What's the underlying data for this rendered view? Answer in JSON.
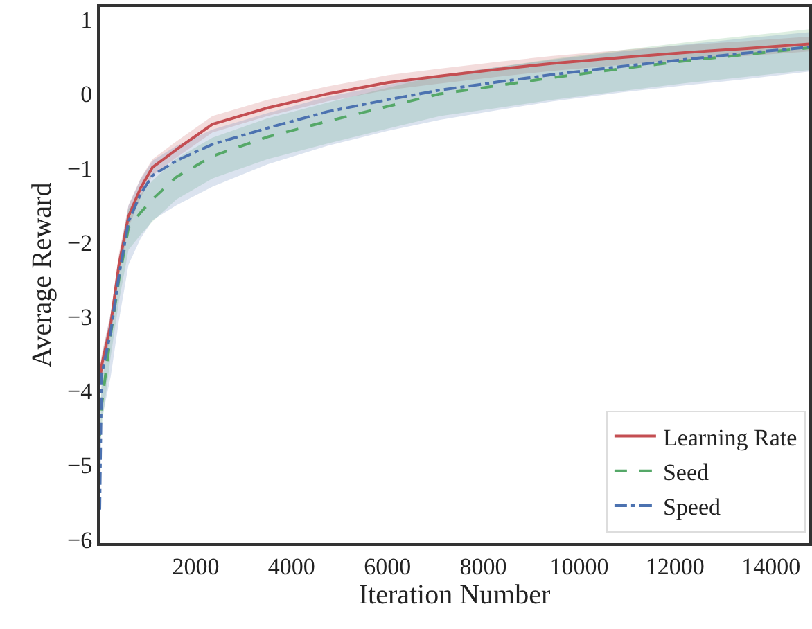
{
  "chart_data": {
    "type": "line",
    "xlabel": "Iteration Number",
    "ylabel": "Average Reward",
    "x": [
      0,
      38,
      230,
      400,
      600,
      850,
      1100,
      1600,
      2350,
      3500,
      4750,
      6000,
      7100,
      8300,
      9450,
      10900,
      12300,
      13500,
      14800
    ],
    "series": [
      {
        "name": "Learning Rate",
        "color": "#c44e52",
        "line_style": "solid",
        "values": [
          -3.9,
          -3.66,
          -3.1,
          -2.3,
          -1.65,
          -1.27,
          -0.99,
          -0.75,
          -0.41,
          -0.19,
          0.0,
          0.15,
          0.24,
          0.33,
          0.41,
          0.49,
          0.56,
          0.61,
          0.67
        ],
        "lower": [
          -4.1,
          -3.8,
          -3.25,
          -2.45,
          -1.8,
          -1.4,
          -1.1,
          -0.86,
          -0.52,
          -0.3,
          -0.1,
          0.05,
          0.14,
          0.23,
          0.31,
          0.39,
          0.46,
          0.51,
          0.57
        ],
        "upper": [
          -3.7,
          -3.52,
          -2.95,
          -2.15,
          -1.5,
          -1.14,
          -0.88,
          -0.64,
          -0.3,
          -0.08,
          0.1,
          0.25,
          0.34,
          0.43,
          0.51,
          0.59,
          0.66,
          0.71,
          0.77
        ]
      },
      {
        "name": "Seed",
        "color": "#55a868",
        "line_style": "dashed",
        "values": [
          -4.6,
          -4.2,
          -3.23,
          -2.5,
          -1.8,
          -1.6,
          -1.42,
          -1.12,
          -0.84,
          -0.58,
          -0.37,
          -0.17,
          0.0,
          0.11,
          0.22,
          0.34,
          0.45,
          0.53,
          0.62
        ],
        "lower": [
          -4.9,
          -4.5,
          -3.53,
          -2.8,
          -2.1,
          -1.9,
          -1.72,
          -1.42,
          -1.14,
          -0.88,
          -0.67,
          -0.47,
          -0.3,
          -0.19,
          -0.08,
          0.04,
          0.15,
          0.23,
          0.32
        ],
        "upper": [
          -4.35,
          -3.95,
          -2.98,
          -2.25,
          -1.55,
          -1.35,
          -1.17,
          -0.87,
          -0.59,
          -0.33,
          -0.12,
          0.08,
          0.25,
          0.36,
          0.47,
          0.59,
          0.7,
          0.78,
          0.87
        ]
      },
      {
        "name": "Speed",
        "color": "#4c72b0",
        "line_style": "dashdot",
        "values": [
          -5.6,
          -3.79,
          -3.2,
          -2.45,
          -1.72,
          -1.35,
          -1.1,
          -0.9,
          -0.68,
          -0.46,
          -0.24,
          -0.08,
          0.05,
          0.16,
          0.26,
          0.37,
          0.47,
          0.55,
          0.63
        ],
        "lower": [
          -5.9,
          -4.4,
          -3.8,
          -3.05,
          -2.3,
          -1.95,
          -1.7,
          -1.5,
          -1.25,
          -0.95,
          -0.7,
          -0.5,
          -0.35,
          -0.22,
          -0.1,
          0.02,
          0.12,
          0.2,
          0.3
        ],
        "upper": [
          -5.4,
          -3.55,
          -2.95,
          -2.2,
          -1.5,
          -1.15,
          -0.9,
          -0.7,
          -0.48,
          -0.26,
          -0.04,
          0.12,
          0.25,
          0.36,
          0.46,
          0.57,
          0.67,
          0.75,
          0.83
        ]
      }
    ],
    "xlim": [
      0,
      14800
    ],
    "xticks": [
      2000,
      4000,
      6000,
      8000,
      10000,
      12000,
      14000
    ],
    "ylim": [
      -6.05,
      1.17
    ],
    "yticks": [
      -6,
      -5,
      -4,
      -3,
      -2,
      -1,
      0,
      1
    ],
    "legend": "bottom right",
    "marker": "none"
  }
}
